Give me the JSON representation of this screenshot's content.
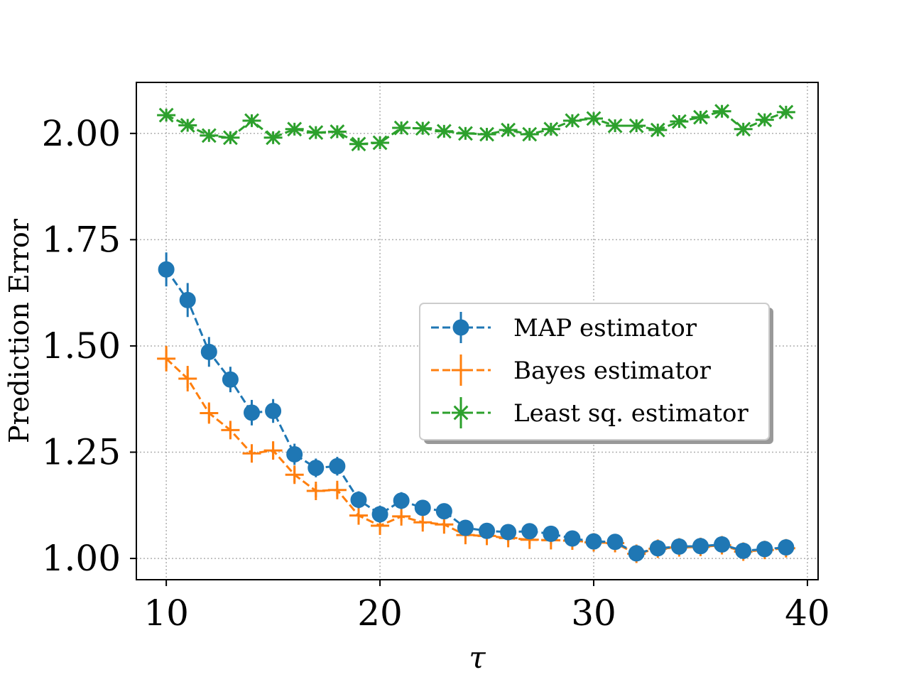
{
  "chart_data": {
    "type": "line",
    "xlabel": "τ",
    "ylabel": "Prediction Error",
    "xlim": [
      8.6,
      40.5
    ],
    "ylim": [
      0.95,
      2.12
    ],
    "xticks": [
      10,
      20,
      30,
      40
    ],
    "yticks": [
      1.0,
      1.25,
      1.5,
      1.75,
      2.0
    ],
    "xtick_labels": [
      "10",
      "20",
      "30",
      "40"
    ],
    "ytick_labels": [
      "1.00",
      "1.25",
      "1.50",
      "1.75",
      "2.00"
    ],
    "grid": true,
    "legend_position": "center-right",
    "x": [
      10,
      11,
      12,
      13,
      14,
      15,
      16,
      17,
      18,
      19,
      20,
      21,
      22,
      23,
      24,
      25,
      26,
      27,
      28,
      29,
      30,
      31,
      32,
      33,
      34,
      35,
      36,
      37,
      38,
      39
    ],
    "series": [
      {
        "name": "MAP estimator",
        "color": "#1f77b4",
        "marker": "circle",
        "values": [
          1.68,
          1.608,
          1.486,
          1.421,
          1.343,
          1.347,
          1.245,
          1.213,
          1.217,
          1.138,
          1.104,
          1.136,
          1.119,
          1.111,
          1.072,
          1.065,
          1.062,
          1.064,
          1.058,
          1.047,
          1.04,
          1.039,
          1.012,
          1.024,
          1.028,
          1.029,
          1.033,
          1.018,
          1.022,
          1.026
        ],
        "errors": [
          0.04,
          0.04,
          0.035,
          0.03,
          0.03,
          0.028,
          0.025,
          0.022,
          0.022,
          0.02,
          0.02,
          0.02,
          0.015,
          0.015,
          0.012,
          0.012,
          0.012,
          0.012,
          0.01,
          0.01,
          0.01,
          0.01,
          0.01,
          0.01,
          0.01,
          0.01,
          0.01,
          0.01,
          0.01,
          0.01
        ]
      },
      {
        "name": "Bayes estimator",
        "color": "#ff7f0e",
        "marker": "plus",
        "values": [
          1.47,
          1.423,
          1.342,
          1.302,
          1.247,
          1.254,
          1.197,
          1.159,
          1.161,
          1.101,
          1.077,
          1.099,
          1.085,
          1.08,
          1.055,
          1.053,
          1.048,
          1.044,
          1.043,
          1.042,
          1.038,
          1.036,
          1.011,
          1.023,
          1.026,
          1.027,
          1.031,
          1.016,
          1.02,
          1.024
        ],
        "errors": [
          0.03,
          0.03,
          0.025,
          0.02,
          0.02,
          0.02,
          0.018,
          0.015,
          0.015,
          0.015,
          0.012,
          0.012,
          0.012,
          0.012,
          0.01,
          0.01,
          0.01,
          0.01,
          0.01,
          0.01,
          0.01,
          0.01,
          0.01,
          0.01,
          0.01,
          0.01,
          0.01,
          0.01,
          0.01,
          0.01
        ]
      },
      {
        "name": "Least sq. estimator",
        "color": "#2ca02c",
        "marker": "star",
        "values": [
          2.043,
          2.019,
          1.995,
          1.99,
          2.03,
          1.99,
          2.01,
          2.002,
          2.004,
          1.975,
          1.978,
          2.013,
          2.012,
          2.005,
          2.0,
          1.998,
          2.008,
          1.998,
          2.01,
          2.03,
          2.035,
          2.018,
          2.018,
          2.008,
          2.028,
          2.038,
          2.052,
          2.01,
          2.032,
          2.05
        ],
        "errors": [
          0.015,
          0.015,
          0.015,
          0.015,
          0.015,
          0.015,
          0.015,
          0.015,
          0.015,
          0.015,
          0.015,
          0.015,
          0.015,
          0.015,
          0.015,
          0.015,
          0.015,
          0.015,
          0.015,
          0.015,
          0.015,
          0.015,
          0.015,
          0.015,
          0.015,
          0.015,
          0.015,
          0.015,
          0.015,
          0.015
        ]
      }
    ]
  }
}
